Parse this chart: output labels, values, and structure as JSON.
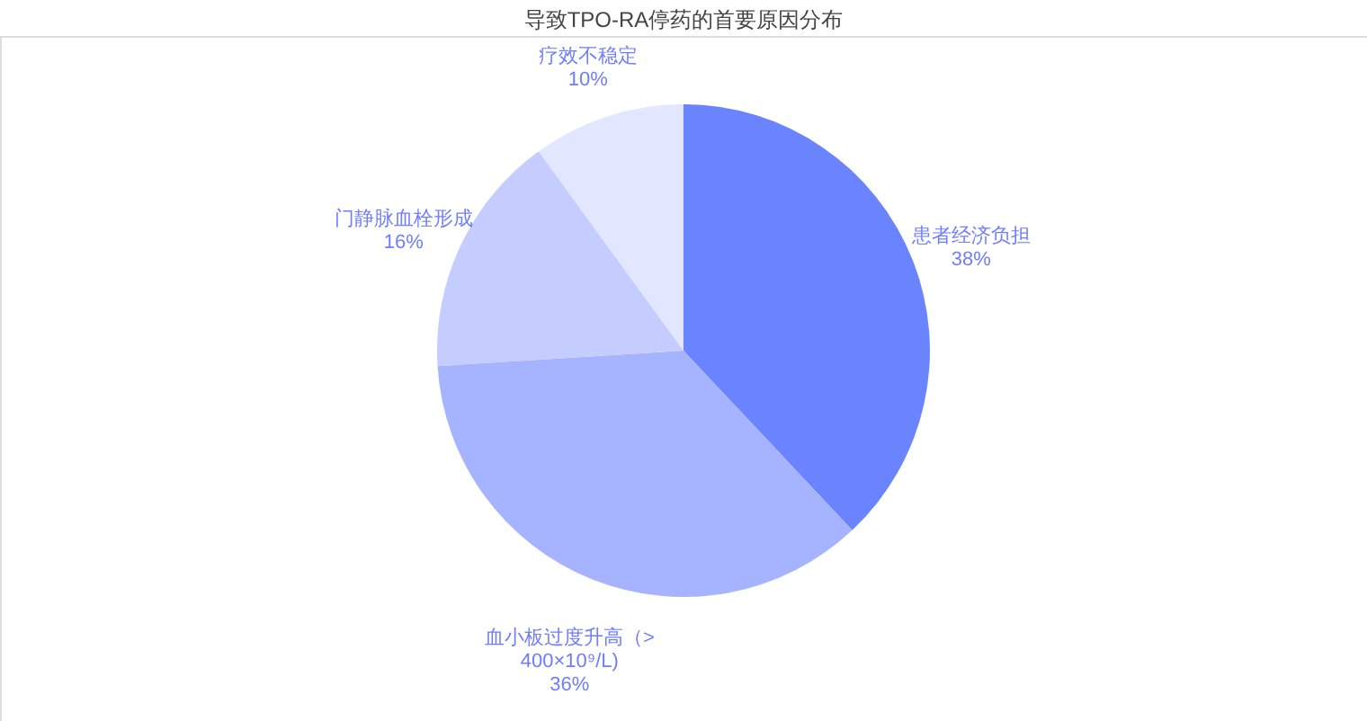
{
  "chart_data": {
    "type": "pie",
    "title": "导致TPO-RA停药的首要原因分布",
    "categories": [
      "患者经济负担",
      "血小板过度升高（>400×10⁹/L)",
      "门静脉血栓形成",
      "疗效不稳定"
    ],
    "values": [
      38,
      36,
      16,
      10
    ],
    "value_labels": [
      "38%",
      "36%",
      "16%",
      "10%"
    ],
    "colors": [
      "#6a84ff",
      "#a6b4ff",
      "#c5cdff",
      "#e2e6ff"
    ],
    "legend": false
  }
}
